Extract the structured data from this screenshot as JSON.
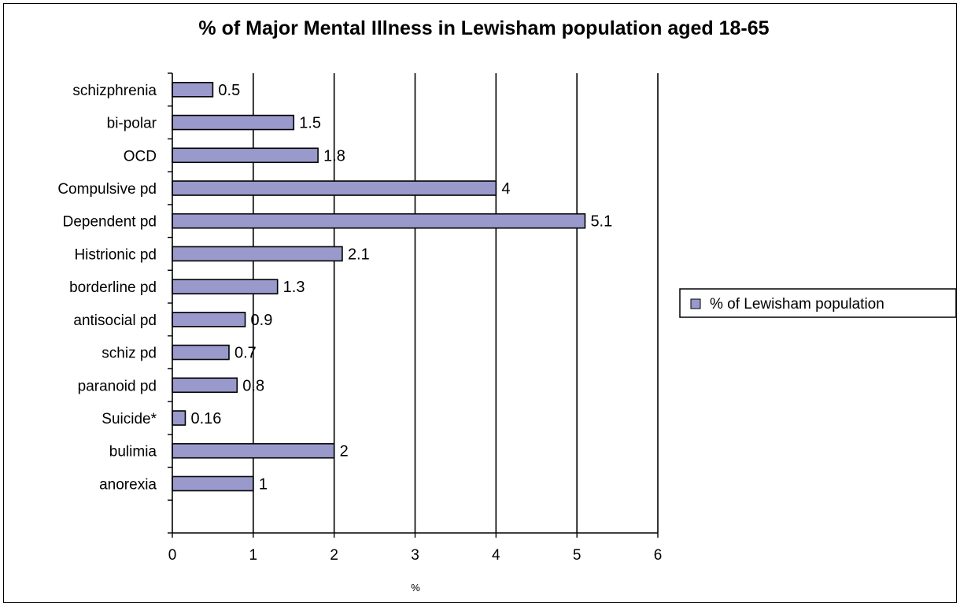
{
  "chart_data": {
    "type": "bar",
    "orientation": "horizontal",
    "title": "% of Major Mental Illness in Lewisham population aged 18-65",
    "xlabel": "%",
    "ylabel": "",
    "xlim": [
      0,
      6
    ],
    "x_ticks": [
      "0",
      "1",
      "2",
      "3",
      "4",
      "5",
      "6"
    ],
    "grid": true,
    "legend_position": "right",
    "categories": [
      "schizphrenia",
      "bi-polar",
      "OCD",
      "Compulsive pd",
      "Dependent pd",
      "Histrionic pd",
      "borderline pd",
      "antisocial pd",
      "schiz pd",
      "paranoid pd",
      "Suicide*",
      "bulimia",
      "anorexia"
    ],
    "series": [
      {
        "name": "% of Lewisham population",
        "color": "#9999cc",
        "values": [
          0.5,
          1.5,
          1.8,
          4,
          5.1,
          2.1,
          1.3,
          0.9,
          0.7,
          0.8,
          0.16,
          2,
          1
        ],
        "value_labels": [
          "0.5",
          "1.5",
          "1.8",
          "4",
          "5.1",
          "2.1",
          "1.3",
          "0.9",
          "0.7",
          "0.8",
          "0.16",
          "2",
          "1"
        ]
      }
    ]
  }
}
